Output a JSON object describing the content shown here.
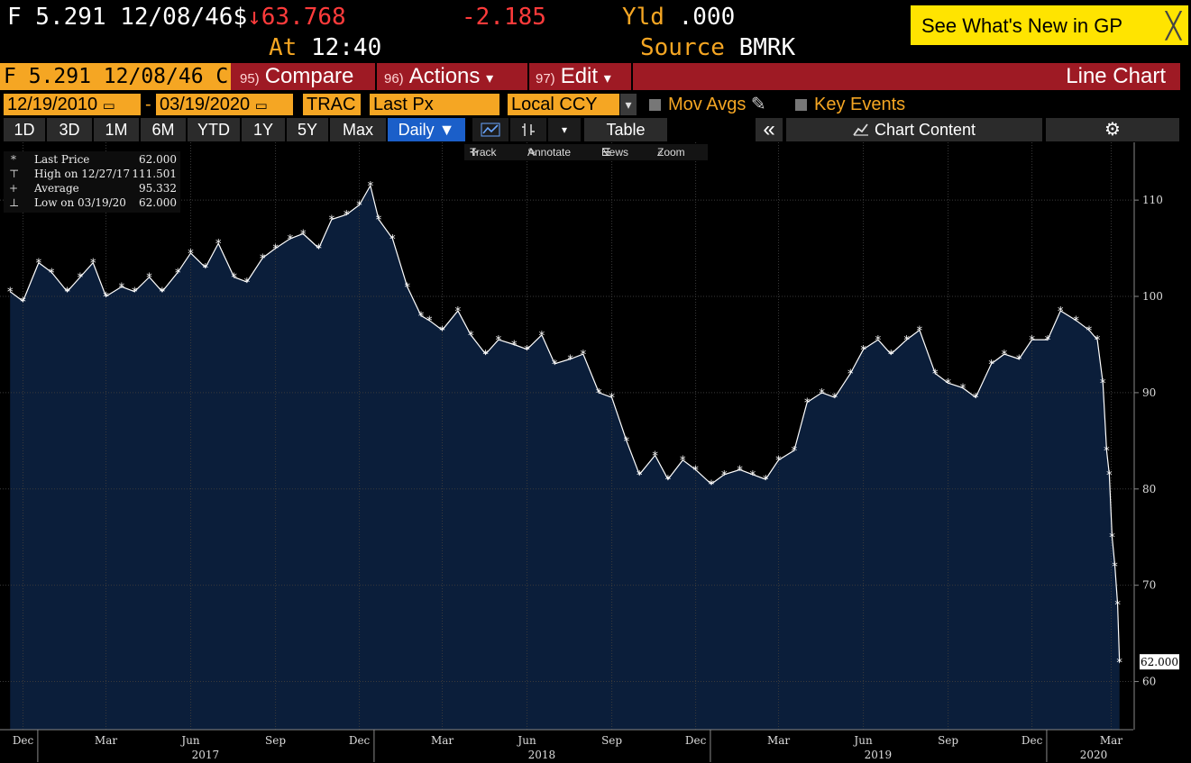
{
  "quote": {
    "security": "F 5.291 12/08/46",
    "currency_symbol": "$",
    "arrow": "↓",
    "price": "63.768",
    "change": "-2.185",
    "yld_label": "Yld",
    "yld_value": ".000",
    "time_label": "At",
    "time_value": "12:40",
    "source_label": "Source",
    "source_value": "BMRK"
  },
  "whats_new": {
    "label": "See What's New in GP",
    "close_glyph": "╳"
  },
  "menu_bar": {
    "ticker": "F 5.291 12/08/46 C",
    "compare_num": "95)",
    "compare_label": "Compare",
    "actions_num": "96)",
    "actions_label": "Actions",
    "edit_num": "97)",
    "edit_label": "Edit",
    "dropdown_glyph": "▾",
    "chart_type": "Line Chart"
  },
  "controls": {
    "start_date": "12/19/2010",
    "date_sep": "-",
    "end_date": "03/19/2020",
    "trac": "TRAC",
    "field": "Last Px",
    "currency": "Local CCY",
    "mov_avgs": "Mov Avgs",
    "key_events": "Key Events"
  },
  "periods": [
    "1D",
    "3D",
    "1M",
    "6M",
    "YTD",
    "1Y",
    "5Y",
    "Max"
  ],
  "frequency": "Daily ▼",
  "table_label": "Table",
  "collapse_glyph": "«",
  "chart_content_label": "Chart Content",
  "settings_glyph": "⚙",
  "toolbar": {
    "track": "Track",
    "annotate": "Annotate",
    "news": "News",
    "zoom": "Zoom"
  },
  "legend": [
    {
      "key": "*",
      "name": "Last Price",
      "value": "62.000"
    },
    {
      "key": "⊤",
      "name": "High on 12/27/17",
      "value": "111.501"
    },
    {
      "key": "+",
      "name": "Average",
      "value": "95.332"
    },
    {
      "key": "⊥",
      "name": "Low on 03/19/20",
      "value": "62.000"
    }
  ],
  "chart_data": {
    "type": "area",
    "series": [
      {
        "name": "Last Price"
      }
    ],
    "ylim": [
      55,
      116
    ],
    "y_ticks": [
      60,
      70,
      80,
      90,
      100,
      110
    ],
    "x_month_ticks": [
      "Dec",
      "Mar",
      "Jun",
      "Sep",
      "Dec",
      "Mar",
      "Jun",
      "Sep",
      "Dec",
      "Mar",
      "Jun",
      "Sep",
      "Dec",
      "Mar"
    ],
    "x_year_labels": [
      "2017",
      "2018",
      "2019",
      "2020"
    ],
    "last_value_label": "62.000",
    "fill_color": "#0b1e3a",
    "line_color": "#ffffff",
    "points": [
      [
        "2016-12-01",
        100.5
      ],
      [
        "2016-12-15",
        99.5
      ],
      [
        "2017-01-01",
        103.5
      ],
      [
        "2017-01-15",
        102.5
      ],
      [
        "2017-02-01",
        100.5
      ],
      [
        "2017-02-15",
        102.0
      ],
      [
        "2017-03-01",
        103.5
      ],
      [
        "2017-03-15",
        100.0
      ],
      [
        "2017-04-01",
        101.0
      ],
      [
        "2017-04-15",
        100.5
      ],
      [
        "2017-05-01",
        102.0
      ],
      [
        "2017-05-15",
        100.5
      ],
      [
        "2017-06-01",
        102.5
      ],
      [
        "2017-06-15",
        104.5
      ],
      [
        "2017-07-01",
        103.0
      ],
      [
        "2017-07-15",
        105.5
      ],
      [
        "2017-08-01",
        102.0
      ],
      [
        "2017-08-15",
        101.5
      ],
      [
        "2017-09-01",
        104.0
      ],
      [
        "2017-09-15",
        105.0
      ],
      [
        "2017-10-01",
        106.0
      ],
      [
        "2017-10-15",
        106.5
      ],
      [
        "2017-11-01",
        105.0
      ],
      [
        "2017-11-15",
        108.0
      ],
      [
        "2017-12-01",
        108.5
      ],
      [
        "2017-12-15",
        109.5
      ],
      [
        "2017-12-27",
        111.5
      ],
      [
        "2018-01-05",
        108.0
      ],
      [
        "2018-01-20",
        106.0
      ],
      [
        "2018-02-05",
        101.0
      ],
      [
        "2018-02-20",
        98.0
      ],
      [
        "2018-03-01",
        97.5
      ],
      [
        "2018-03-15",
        96.5
      ],
      [
        "2018-04-01",
        98.5
      ],
      [
        "2018-04-15",
        96.0
      ],
      [
        "2018-05-01",
        94.0
      ],
      [
        "2018-05-15",
        95.5
      ],
      [
        "2018-06-01",
        95.0
      ],
      [
        "2018-06-15",
        94.5
      ],
      [
        "2018-07-01",
        96.0
      ],
      [
        "2018-07-15",
        93.0
      ],
      [
        "2018-08-01",
        93.5
      ],
      [
        "2018-08-15",
        94.0
      ],
      [
        "2018-09-01",
        90.0
      ],
      [
        "2018-09-15",
        89.5
      ],
      [
        "2018-10-01",
        85.0
      ],
      [
        "2018-10-15",
        81.5
      ],
      [
        "2018-11-01",
        83.5
      ],
      [
        "2018-11-15",
        81.0
      ],
      [
        "2018-12-01",
        83.0
      ],
      [
        "2018-12-15",
        82.0
      ],
      [
        "2019-01-01",
        80.5
      ],
      [
        "2019-01-15",
        81.5
      ],
      [
        "2019-02-01",
        82.0
      ],
      [
        "2019-02-15",
        81.5
      ],
      [
        "2019-03-01",
        81.0
      ],
      [
        "2019-03-15",
        83.0
      ],
      [
        "2019-04-01",
        84.0
      ],
      [
        "2019-04-15",
        89.0
      ],
      [
        "2019-05-01",
        90.0
      ],
      [
        "2019-05-15",
        89.5
      ],
      [
        "2019-06-01",
        92.0
      ],
      [
        "2019-06-15",
        94.5
      ],
      [
        "2019-07-01",
        95.5
      ],
      [
        "2019-07-15",
        94.0
      ],
      [
        "2019-08-01",
        95.5
      ],
      [
        "2019-08-15",
        96.5
      ],
      [
        "2019-09-01",
        92.0
      ],
      [
        "2019-09-15",
        91.0
      ],
      [
        "2019-10-01",
        90.5
      ],
      [
        "2019-10-15",
        89.5
      ],
      [
        "2019-11-01",
        93.0
      ],
      [
        "2019-11-15",
        94.0
      ],
      [
        "2019-12-01",
        93.5
      ],
      [
        "2019-12-15",
        95.5
      ],
      [
        "2020-01-01",
        95.5
      ],
      [
        "2020-01-15",
        98.5
      ],
      [
        "2020-02-01",
        97.5
      ],
      [
        "2020-02-15",
        96.5
      ],
      [
        "2020-02-24",
        95.5
      ],
      [
        "2020-03-01",
        91.0
      ],
      [
        "2020-03-05",
        84.0
      ],
      [
        "2020-03-08",
        81.5
      ],
      [
        "2020-03-11",
        75.0
      ],
      [
        "2020-03-14",
        72.0
      ],
      [
        "2020-03-17",
        68.0
      ],
      [
        "2020-03-19",
        62.0
      ]
    ]
  }
}
